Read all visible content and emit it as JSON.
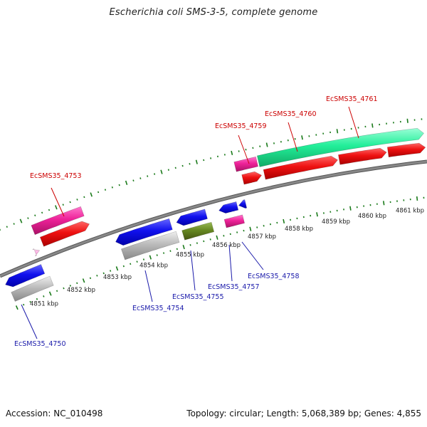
{
  "title": "Escherichia coli SMS-3-5, complete genome",
  "footer": {
    "accession_label": "Accession:",
    "accession": "NC_010498",
    "topology_label": "Topology:",
    "topology": "circular",
    "length_label": "Length:",
    "length": "5,068,389 bp",
    "genes_label": "Genes:",
    "genes": "4,855"
  },
  "scale": {
    "unit": "kbp",
    "ticks": [
      {
        "label": "4851 kbp"
      },
      {
        "label": "4852 kbp"
      },
      {
        "label": "4853 kbp"
      },
      {
        "label": "4854 kbp"
      },
      {
        "label": "4855 kbp"
      },
      {
        "label": "4856 kbp"
      },
      {
        "label": "4857 kbp"
      },
      {
        "label": "4858 kbp"
      },
      {
        "label": "4859 kbp"
      },
      {
        "label": "4860 kbp"
      },
      {
        "label": "4861 kbp"
      }
    ]
  },
  "gene_labels": {
    "top": [
      {
        "text": "EcSMS35_4753"
      },
      {
        "text": "EcSMS35_4759"
      },
      {
        "text": "EcSMS35_4760"
      },
      {
        "text": "EcSMS35_4761"
      }
    ],
    "bottom": [
      {
        "text": "EcSMS35_4750"
      },
      {
        "text": "EcSMS35_4754"
      },
      {
        "text": "EcSMS35_4755"
      },
      {
        "text": "EcSMS35_4757"
      },
      {
        "text": "EcSMS35_4758"
      }
    ]
  },
  "colors": {
    "forward_label": "#cc0000",
    "reverse_label": "#1a1aaa",
    "tick": "#1a7a1a",
    "backbone": "#888888",
    "red": "#ee1111",
    "pink": "#ee2299",
    "green": "#22ee99",
    "blue": "#1111ee",
    "grey": "#bbbbbb",
    "olive": "#668822"
  }
}
